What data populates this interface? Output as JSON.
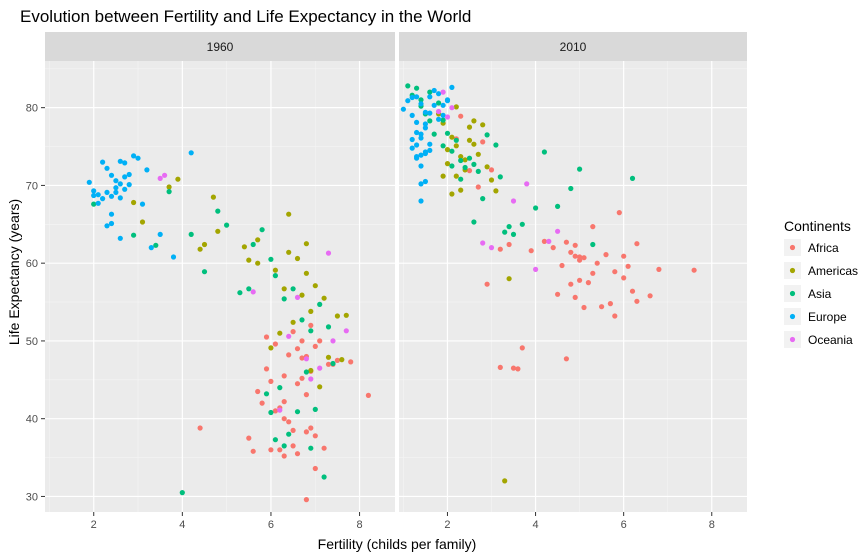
{
  "chart_data": {
    "type": "scatter",
    "title": "Evolution between Fertility and Life Expectancy in the World",
    "xlabel": "Fertility (childs per family)",
    "ylabel": "Life Expectancy (years)",
    "xlim": [
      0.9,
      8.8
    ],
    "ylim": [
      28,
      86
    ],
    "xticks": [
      2,
      4,
      6,
      8
    ],
    "yticks": [
      30,
      40,
      50,
      60,
      70,
      80
    ],
    "grid": true,
    "legend": {
      "title": "Continents",
      "placement": "right",
      "entries": [
        "Africa",
        "Americas",
        "Asia",
        "Europe",
        "Oceania"
      ]
    },
    "colors": {
      "Africa": "#F8766D",
      "Americas": "#A3A500",
      "Asia": "#00BF7D",
      "Europe": "#00B0F6",
      "Oceania": "#E76BF3"
    },
    "panels": [
      {
        "label": "1960",
        "series": [
          {
            "name": "Africa",
            "x": [
              4.4,
              6.2,
              6.8,
              7.0,
              6.3,
              6.5,
              5.8,
              6.0,
              7.3,
              7.5,
              6.7,
              6.9,
              7.1,
              6.4,
              6.1,
              5.9,
              7.8,
              8.2,
              6.7,
              6.6,
              6.8,
              6.2,
              6.3,
              6.5,
              6.9,
              6.0,
              5.6,
              6.6,
              7.2,
              7.0,
              6.8,
              6.4,
              6.3,
              6.1,
              5.7,
              5.5,
              6.8,
              6.6,
              6.7,
              7.4,
              6.5,
              6.9,
              7.0,
              5.9,
              6.3
            ],
            "y": [
              38.8,
              36.0,
              29.6,
              33.6,
              35.2,
              36.5,
              42.0,
              44.8,
              47.0,
              47.5,
              47.8,
              46.1,
              50.0,
              48.2,
              49.6,
              50.5,
              47.3,
              43.0,
              45.2,
              44.5,
              43.1,
              41.4,
              40.0,
              38.5,
              38.8,
              36.0,
              35.8,
              35.5,
              36.2,
              37.8,
              38.3,
              39.6,
              42.2,
              41.0,
              43.5,
              37.5,
              48.0,
              49.0,
              50.0,
              47.0,
              51.2,
              52.0,
              49.3,
              46.4,
              45.5
            ]
          },
          {
            "name": "Americas",
            "x": [
              3.1,
              3.7,
              3.9,
              4.5,
              4.4,
              4.7,
              4.8,
              5.4,
              5.7,
              6.1,
              6.3,
              6.6,
              6.8,
              7.0,
              7.2,
              7.5,
              6.5,
              6.2,
              6.0,
              5.5,
              6.9,
              7.3,
              6.4,
              6.7,
              5.7,
              6.4,
              6.8,
              7.6,
              6.9,
              7.1,
              7.7,
              2.9
            ],
            "y": [
              65.3,
              69.8,
              70.8,
              62.4,
              61.8,
              68.5,
              64.1,
              62.1,
              63.0,
              59.1,
              56.7,
              60.6,
              58.7,
              57.1,
              55.5,
              53.2,
              52.4,
              51.0,
              49.1,
              60.4,
              53.8,
              47.9,
              61.4,
              55.9,
              60.0,
              66.3,
              62.5,
              47.6,
              46.2,
              44.1,
              53.3,
              67.8
            ]
          },
          {
            "name": "Asia",
            "x": [
              2.0,
              2.9,
              3.4,
              3.7,
              4.2,
              4.5,
              4.8,
              5.0,
              5.3,
              5.6,
              5.8,
              6.0,
              6.1,
              6.3,
              6.5,
              6.7,
              6.9,
              7.1,
              7.3,
              7.4,
              6.8,
              6.2,
              6.0,
              5.9,
              6.6,
              7.0,
              6.4,
              6.1,
              6.3,
              6.9,
              7.2,
              4.0,
              5.5
            ],
            "y": [
              67.6,
              63.6,
              62.3,
              69.2,
              63.7,
              58.9,
              66.7,
              64.9,
              56.2,
              62.4,
              64.3,
              60.5,
              58.4,
              55.4,
              56.7,
              52.7,
              51.3,
              54.7,
              51.8,
              47.1,
              46.0,
              44.0,
              40.8,
              43.2,
              40.9,
              41.2,
              38.0,
              37.3,
              36.5,
              36.2,
              32.5,
              30.5,
              56.7
            ]
          },
          {
            "name": "Europe",
            "x": [
              1.9,
              2.0,
              2.1,
              2.2,
              2.3,
              2.4,
              2.5,
              2.6,
              2.7,
              2.8,
              2.9,
              3.0,
              2.2,
              2.3,
              2.4,
              2.5,
              2.6,
              2.0,
              2.1,
              2.7,
              2.8,
              3.2,
              2.6,
              2.4,
              3.3,
              3.5,
              3.8,
              4.2,
              2.3,
              2.4,
              2.6,
              2.7,
              2.5,
              3.1
            ],
            "y": [
              70.4,
              69.3,
              68.8,
              73.0,
              72.2,
              71.3,
              70.6,
              73.1,
              72.9,
              70.1,
              73.8,
              73.5,
              68.3,
              69.1,
              68.6,
              69.7,
              70.2,
              68.7,
              67.7,
              69.5,
              71.4,
              72.0,
              63.2,
              65.1,
              62.0,
              63.7,
              60.8,
              74.2,
              64.8,
              66.3,
              68.4,
              71.1,
              69.1,
              67.6
            ]
          },
          {
            "name": "Oceania",
            "x": [
              3.5,
              3.6,
              5.6,
              6.4,
              6.6,
              6.8,
              7.3,
              7.7,
              7.1,
              6.2,
              7.4,
              6.9
            ],
            "y": [
              70.9,
              71.3,
              56.3,
              50.6,
              55.6,
              47.7,
              61.3,
              51.3,
              46.5,
              41.1,
              50.0,
              45.1
            ]
          }
        ]
      },
      {
        "label": "2010",
        "series": [
          {
            "name": "Africa",
            "x": [
              2.3,
              2.5,
              2.7,
              2.9,
              3.2,
              3.4,
              3.6,
              3.9,
              4.2,
              4.4,
              4.6,
              4.8,
              5.0,
              5.1,
              5.3,
              5.5,
              5.7,
              5.8,
              5.9,
              6.0,
              6.2,
              6.3,
              6.6,
              6.8,
              7.6,
              4.7,
              4.9,
              5.2,
              5.0,
              5.4,
              4.9,
              5.1,
              6.0,
              5.8,
              6.1,
              4.8,
              3.5,
              3.7,
              3.2,
              2.2,
              3.0,
              2.8,
              4.5,
              5.6,
              4.7,
              5.0,
              4.9,
              5.3,
              6.3
            ],
            "y": [
              78.9,
              71.9,
              69.8,
              57.3,
              61.8,
              62.4,
              46.4,
              61.6,
              62.8,
              62.0,
              59.7,
              61.4,
              60.8,
              54.3,
              58.7,
              54.4,
              54.8,
              53.2,
              66.5,
              58.1,
              56.4,
              55.1,
              55.8,
              59.2,
              59.1,
              47.7,
              55.6,
              57.5,
              60.4,
              60.0,
              62.3,
              60.7,
              60.9,
              58.9,
              59.6,
              57.3,
              46.5,
              49.1,
              46.6,
              76.0,
              72.0,
              75.6,
              56.0,
              61.1,
              62.7,
              57.8,
              60.9,
              64.7,
              62.5
            ]
          },
          {
            "name": "Americas",
            "x": [
              1.8,
              1.9,
              2.0,
              2.1,
              2.2,
              2.3,
              2.4,
              2.5,
              2.6,
              2.7,
              2.9,
              3.0,
              3.1,
              3.3,
              2.2,
              2.4,
              2.0,
              2.6,
              1.9,
              2.1,
              2.5,
              3.4,
              2.3,
              2.8,
              2.2
            ],
            "y": [
              79.2,
              78.0,
              74.6,
              76.2,
              75.1,
              73.7,
              72.0,
              77.5,
              78.3,
              74.0,
              72.4,
              70.7,
              69.3,
              32.0,
              71.2,
              73.3,
              72.8,
              75.3,
              71.2,
              68.9,
              75.8,
              58.0,
              69.4,
              77.8,
              80.1
            ]
          },
          {
            "name": "Asia",
            "x": [
              1.1,
              1.3,
              1.4,
              1.5,
              1.6,
              1.8,
              1.9,
              2.0,
              2.1,
              2.2,
              2.3,
              2.4,
              2.5,
              2.6,
              2.7,
              2.9,
              3.1,
              3.2,
              3.4,
              3.7,
              4.0,
              4.2,
              4.5,
              4.8,
              5.0,
              5.3,
              6.2,
              2.6,
              2.8,
              1.2,
              1.4,
              1.6,
              2.3,
              3.3,
              3.5,
              1.7,
              1.9,
              2.1
            ],
            "y": [
              82.8,
              82.5,
              81.0,
              79.2,
              82.0,
              80.6,
              78.4,
              76.7,
              74.4,
              75.8,
              73.2,
              72.3,
              73.5,
              72.7,
              71.8,
              76.5,
              75.2,
              71.1,
              64.7,
              65.0,
              67.1,
              74.3,
              67.3,
              69.6,
              72.1,
              62.4,
              70.9,
              65.3,
              68.3,
              81.6,
              80.2,
              78.3,
              70.8,
              64.0,
              63.7,
              76.6,
              75.1,
              72.5
            ]
          },
          {
            "name": "Europe",
            "x": [
              1.0,
              1.1,
              1.2,
              1.3,
              1.4,
              1.5,
              1.6,
              1.7,
              1.8,
              1.9,
              2.0,
              2.1,
              1.2,
              1.3,
              1.4,
              1.5,
              1.6,
              1.4,
              1.5,
              1.3,
              1.5,
              1.4,
              1.2,
              1.6,
              1.8,
              1.9,
              2.0,
              1.7,
              1.4,
              1.3,
              1.4,
              1.5,
              1.6,
              1.3,
              1.4,
              1.5,
              1.2,
              1.3
            ],
            "y": [
              79.8,
              80.9,
              81.3,
              81.4,
              80.5,
              79.4,
              81.4,
              82.2,
              81.8,
              80.3,
              81.0,
              82.6,
              74.8,
              73.5,
              72.5,
              74.1,
              75.3,
              70.2,
              70.5,
              76.8,
              77.4,
              76.6,
              79.0,
              79.3,
              78.5,
              79.0,
              80.9,
              80.3,
              68.0,
              73.7,
              73.9,
              74.3,
              74.5,
              75.2,
              76.1,
              77.9,
              75.9,
              78.1
            ]
          },
          {
            "name": "Oceania",
            "x": [
              1.9,
              2.0,
              2.1,
              2.8,
              3.8,
              4.0,
              4.3,
              4.5,
              3.0,
              3.5,
              1.8
            ],
            "y": [
              82.0,
              78.8,
              80.0,
              62.6,
              70.2,
              59.2,
              62.8,
              64.1,
              62.0,
              68.0,
              79.5
            ]
          }
        ]
      }
    ]
  }
}
